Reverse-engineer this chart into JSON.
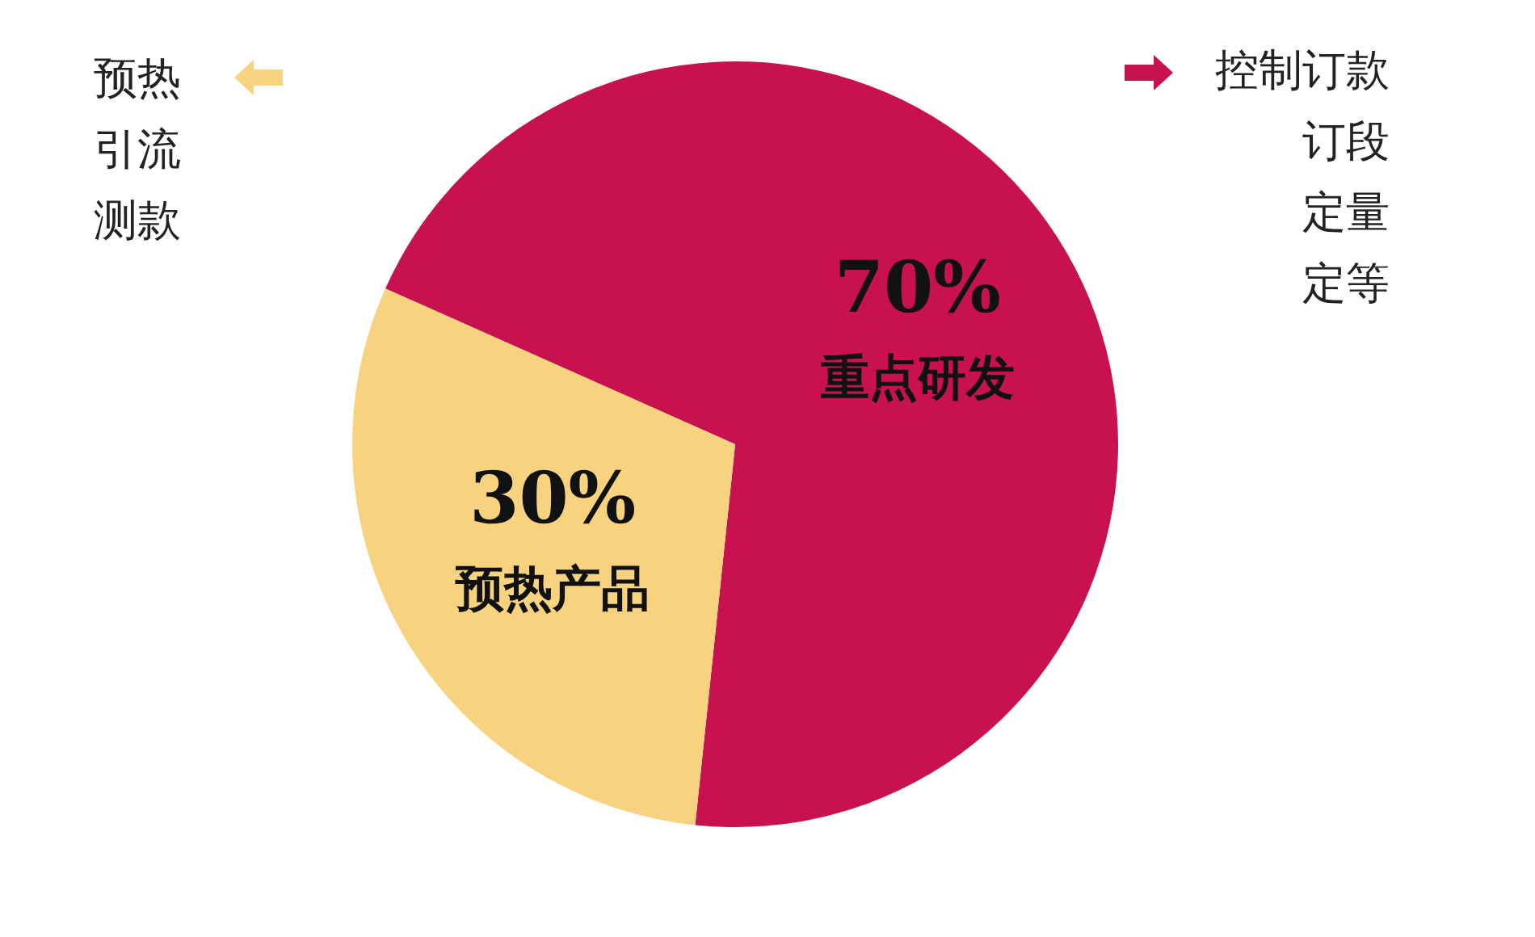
{
  "chart_data": {
    "type": "pie",
    "categories": [
      "重点研发",
      "预热产品"
    ],
    "values": [
      70,
      30
    ],
    "colors": [
      "#c81250",
      "#f7d27f"
    ],
    "value_labels": [
      "70%",
      "30%"
    ],
    "annotations": [
      "预热",
      "引流",
      "测款",
      "控制订款",
      "订段",
      "定量",
      "定等"
    ]
  }
}
